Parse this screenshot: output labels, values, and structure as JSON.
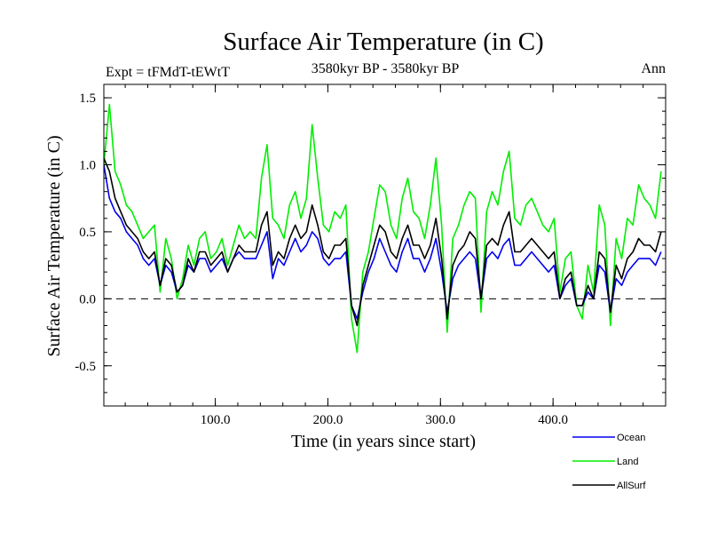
{
  "chart_data": {
    "type": "line",
    "title": "Surface Air Temperature (in C)",
    "subtitle_left": "Expt = tFMdT-tEWtT",
    "subtitle_center": "3580kyr BP - 3580kyr BP",
    "subtitle_right": "Ann",
    "xlabel": "Time (in years since start)",
    "ylabel": "Surface Air Temperature (in C)",
    "xlim": [
      1,
      500
    ],
    "ylim": [
      -0.8,
      1.6
    ],
    "x_ticks": [
      100,
      200,
      300,
      400
    ],
    "x_tick_labels": [
      "100.0",
      "200.0",
      "300.0",
      "400.0"
    ],
    "y_ticks": [
      -0.5,
      0.0,
      0.5,
      1.0,
      1.5
    ],
    "y_tick_labels": [
      "-0.5",
      "0.0",
      "0.5",
      "1.0",
      "1.5"
    ],
    "reference_line": 0.0,
    "x_step": 5,
    "x_start": 1,
    "series": [
      {
        "name": "Land",
        "color": "#00ee00",
        "values": [
          1.0,
          1.45,
          0.95,
          0.85,
          0.7,
          0.65,
          0.55,
          0.45,
          0.5,
          0.55,
          0.05,
          0.45,
          0.3,
          0.0,
          0.15,
          0.4,
          0.25,
          0.45,
          0.5,
          0.3,
          0.35,
          0.45,
          0.25,
          0.4,
          0.55,
          0.45,
          0.5,
          0.45,
          0.9,
          1.15,
          0.6,
          0.55,
          0.45,
          0.7,
          0.8,
          0.6,
          0.75,
          1.3,
          0.9,
          0.55,
          0.5,
          0.65,
          0.6,
          0.7,
          -0.15,
          -0.4,
          0.2,
          0.35,
          0.6,
          0.85,
          0.8,
          0.55,
          0.45,
          0.75,
          0.9,
          0.65,
          0.6,
          0.45,
          0.7,
          1.05,
          0.55,
          -0.25,
          0.45,
          0.55,
          0.7,
          0.8,
          0.75,
          -0.1,
          0.65,
          0.8,
          0.7,
          0.95,
          1.1,
          0.6,
          0.55,
          0.7,
          0.75,
          0.65,
          0.55,
          0.5,
          0.6,
          0.05,
          0.3,
          0.35,
          -0.05,
          -0.15,
          0.25,
          0.05,
          0.7,
          0.55,
          -0.2,
          0.45,
          0.3,
          0.6,
          0.55,
          0.85,
          0.75,
          0.7,
          0.6,
          0.95
        ]
      },
      {
        "name": "Ocean",
        "color": "#0000ee",
        "values": [
          1.0,
          0.75,
          0.65,
          0.6,
          0.5,
          0.45,
          0.4,
          0.3,
          0.25,
          0.3,
          0.1,
          0.25,
          0.2,
          0.05,
          0.1,
          0.25,
          0.2,
          0.3,
          0.3,
          0.2,
          0.25,
          0.3,
          0.2,
          0.3,
          0.35,
          0.3,
          0.3,
          0.3,
          0.4,
          0.5,
          0.15,
          0.3,
          0.25,
          0.35,
          0.45,
          0.35,
          0.4,
          0.5,
          0.45,
          0.3,
          0.25,
          0.3,
          0.3,
          0.35,
          -0.05,
          -0.15,
          0.05,
          0.2,
          0.3,
          0.45,
          0.35,
          0.25,
          0.2,
          0.35,
          0.45,
          0.3,
          0.3,
          0.2,
          0.3,
          0.45,
          0.2,
          -0.1,
          0.15,
          0.25,
          0.3,
          0.35,
          0.3,
          0.0,
          0.3,
          0.35,
          0.3,
          0.4,
          0.45,
          0.25,
          0.25,
          0.3,
          0.35,
          0.3,
          0.25,
          0.2,
          0.25,
          0.0,
          0.1,
          0.15,
          -0.05,
          -0.05,
          0.05,
          0.0,
          0.25,
          0.2,
          -0.1,
          0.15,
          0.1,
          0.2,
          0.25,
          0.3,
          0.3,
          0.3,
          0.25,
          0.35
        ]
      },
      {
        "name": "AllSurf",
        "color": "#000000",
        "values": [
          1.05,
          0.95,
          0.75,
          0.65,
          0.55,
          0.5,
          0.45,
          0.35,
          0.3,
          0.35,
          0.1,
          0.3,
          0.25,
          0.05,
          0.1,
          0.3,
          0.2,
          0.35,
          0.35,
          0.25,
          0.3,
          0.35,
          0.2,
          0.3,
          0.4,
          0.35,
          0.35,
          0.35,
          0.55,
          0.65,
          0.25,
          0.35,
          0.3,
          0.45,
          0.55,
          0.45,
          0.5,
          0.7,
          0.55,
          0.35,
          0.3,
          0.4,
          0.4,
          0.45,
          -0.05,
          -0.2,
          0.1,
          0.25,
          0.4,
          0.55,
          0.5,
          0.35,
          0.3,
          0.45,
          0.55,
          0.4,
          0.4,
          0.3,
          0.4,
          0.6,
          0.3,
          -0.15,
          0.25,
          0.35,
          0.4,
          0.5,
          0.45,
          0.0,
          0.4,
          0.45,
          0.4,
          0.55,
          0.65,
          0.35,
          0.35,
          0.4,
          0.45,
          0.4,
          0.35,
          0.3,
          0.35,
          0.0,
          0.15,
          0.2,
          -0.05,
          -0.05,
          0.1,
          0.0,
          0.35,
          0.3,
          -0.1,
          0.25,
          0.15,
          0.3,
          0.35,
          0.45,
          0.4,
          0.4,
          0.35,
          0.5
        ]
      }
    ],
    "legend": [
      {
        "name": "Ocean",
        "color": "#0000ee"
      },
      {
        "name": "Land",
        "color": "#00ee00"
      },
      {
        "name": "AllSurf",
        "color": "#000000"
      }
    ]
  }
}
